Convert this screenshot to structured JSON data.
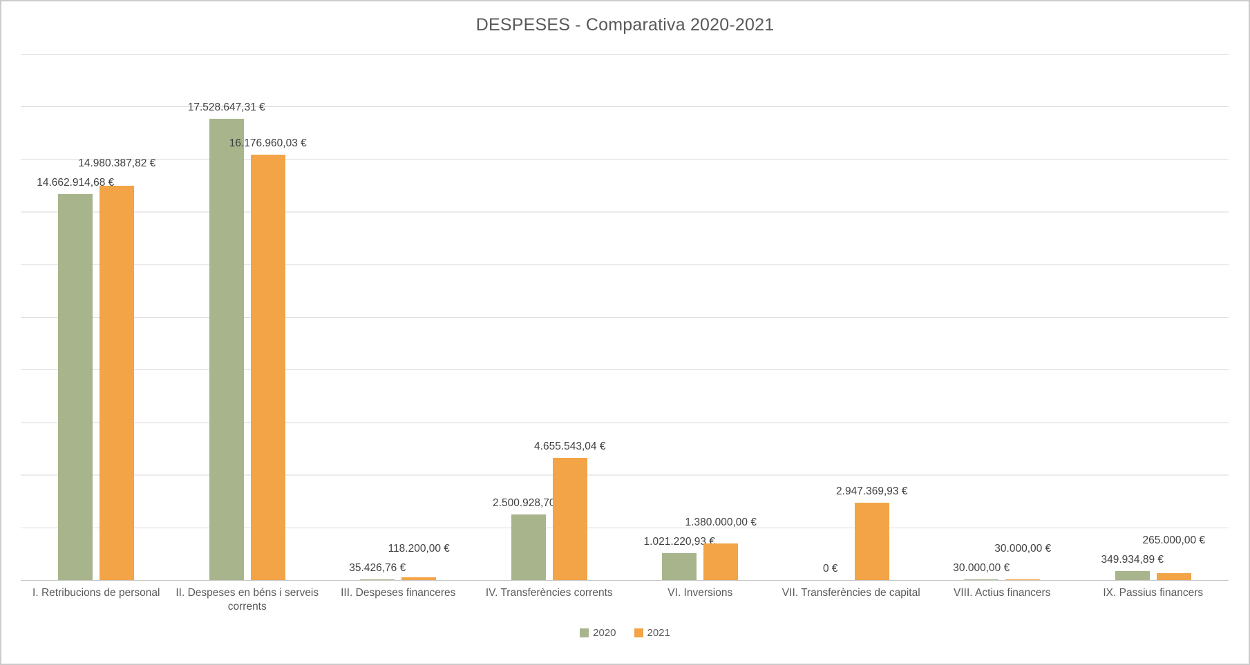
{
  "title": "DESPESES - Comparativa 2020-2021",
  "chart_data": {
    "type": "bar",
    "title": "DESPESES - Comparativa 2020-2021",
    "categories": [
      "I. Retribucions de personal",
      "II. Despeses en béns i serveis corrents",
      "III. Despeses financeres",
      "IV. Transferències corrents",
      "VI. Inversions",
      "VII. Transferències de capital",
      "VIII. Actius financers",
      "IX. Passius financers"
    ],
    "series": [
      {
        "name": "2020",
        "color": "#a8b58c",
        "values": [
          14662914.68,
          17528647.31,
          35426.76,
          2500928.7,
          1021220.93,
          0,
          30000.0,
          349934.89
        ],
        "labels": [
          "14.662.914,68 €",
          "17.528.647,31 €",
          "35.426,76 €",
          "2.500.928,70 €",
          "1.021.220,93 €",
          "0 €",
          "30.000,00 €",
          "349.934,89 €"
        ]
      },
      {
        "name": "2021",
        "color": "#f2a446",
        "values": [
          14980387.82,
          16176960.03,
          118200.0,
          4655543.04,
          1380000.0,
          2947369.93,
          30000.0,
          265000.0
        ],
        "labels": [
          "14.980.387,82 €",
          "16.176.960,03 €",
          "118.200,00 €",
          "4.655.543,04 €",
          "1.380.000,00 €",
          "2.947.369,93 €",
          "30.000,00 €",
          "265.000,00 €"
        ]
      }
    ],
    "xlabel": "",
    "ylabel": "",
    "ylim": [
      0,
      20000000
    ],
    "gridline_interval": 2000000,
    "grid": true,
    "y_axis_labels_visible": false,
    "legend_position": "bottom",
    "value_label_suffix": "€"
  },
  "colors": {
    "series_2020": "#a8b58c",
    "series_2021": "#f2a446",
    "title_text": "#595959",
    "axis_text": "#595959",
    "value_label_text": "#3f3f3f",
    "gridline": "#d9d9d9",
    "axis_line": "#c6c6c6",
    "frame_border": "#cbcbcb",
    "background": "#ffffff"
  }
}
